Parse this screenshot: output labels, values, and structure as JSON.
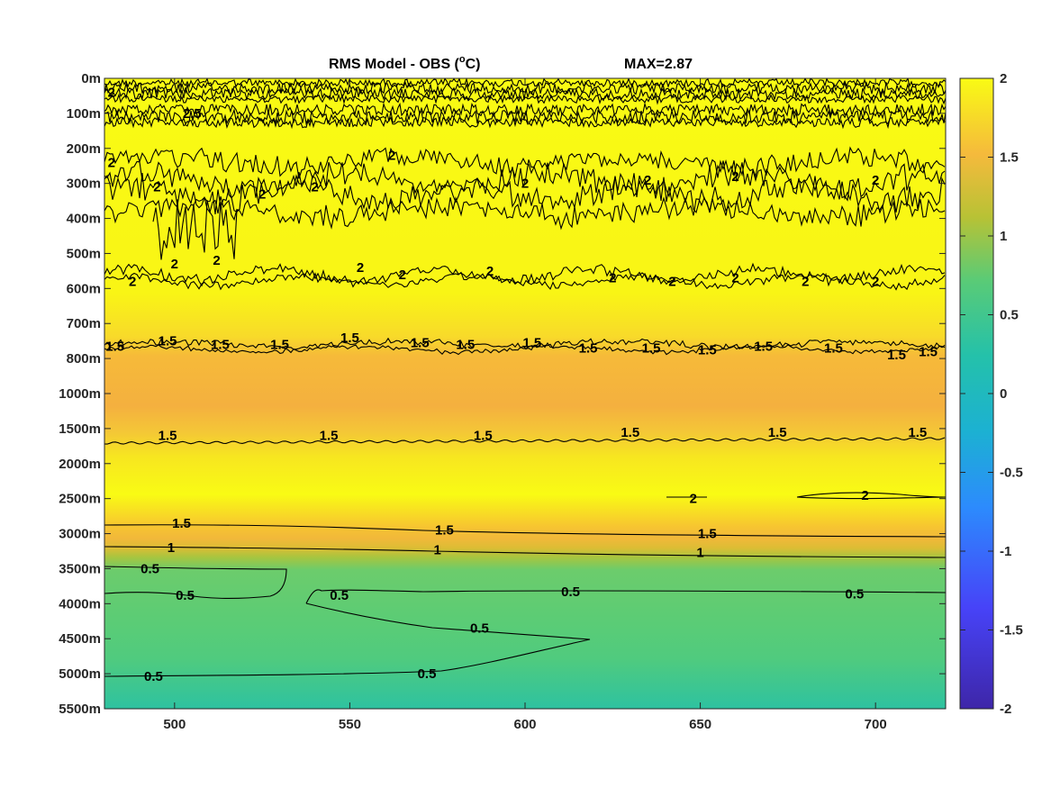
{
  "chart_data": {
    "type": "heatmap",
    "title": "RMS Model - OBS (",
    "title_unit": "o",
    "title_end": "C)",
    "max_label": "MAX=2.87",
    "x_ticks": [
      500,
      550,
      600,
      650,
      700
    ],
    "xlim": [
      480,
      720
    ],
    "y_tick_labels": [
      "0m",
      "100m",
      "200m",
      "300m",
      "400m",
      "500m",
      "600m",
      "700m",
      "800m",
      "1000m",
      "1500m",
      "2000m",
      "2500m",
      "3000m",
      "3500m",
      "4000m",
      "4500m",
      "5000m",
      "5500m"
    ],
    "colorbar": {
      "ticks": [
        "2",
        "1.5",
        "1",
        "0.5",
        "0",
        "-0.5",
        "-1",
        "-1.5",
        "-2"
      ],
      "range": [
        -2,
        2
      ],
      "colormap": [
        "#3e26a8",
        "#4743f8",
        "#2c8bfd",
        "#1cb1d2",
        "#24c1aa",
        "#5acb76",
        "#b8c235",
        "#f5ba3c",
        "#f9fb14"
      ]
    },
    "contour_labels": [
      {
        "text": "2.5",
        "x": 505,
        "y": "100m"
      },
      {
        "text": "2",
        "x": 482,
        "y": "40m"
      },
      {
        "text": "2",
        "x": 482,
        "y": "240m"
      },
      {
        "text": "2",
        "x": 495,
        "y": "310m"
      },
      {
        "text": "2",
        "x": 525,
        "y": "330m"
      },
      {
        "text": "2",
        "x": 540,
        "y": "310m"
      },
      {
        "text": "2",
        "x": 562,
        "y": "220m"
      },
      {
        "text": "2",
        "x": 600,
        "y": "300m"
      },
      {
        "text": "2",
        "x": 635,
        "y": "290m"
      },
      {
        "text": "2",
        "x": 660,
        "y": "280m"
      },
      {
        "text": "2",
        "x": 700,
        "y": "290m"
      },
      {
        "text": "2",
        "x": 488,
        "y": "580m"
      },
      {
        "text": "2",
        "x": 500,
        "y": "530m"
      },
      {
        "text": "2",
        "x": 512,
        "y": "520m"
      },
      {
        "text": "2",
        "x": 553,
        "y": "540m"
      },
      {
        "text": "2",
        "x": 565,
        "y": "560m"
      },
      {
        "text": "2",
        "x": 590,
        "y": "550m"
      },
      {
        "text": "2",
        "x": 625,
        "y": "570m"
      },
      {
        "text": "2",
        "x": 642,
        "y": "580m"
      },
      {
        "text": "2",
        "x": 660,
        "y": "570m"
      },
      {
        "text": "2",
        "x": 680,
        "y": "580m"
      },
      {
        "text": "2",
        "x": 700,
        "y": "580m"
      },
      {
        "text": "1.5",
        "x": 483,
        "y": "765m"
      },
      {
        "text": "1.5",
        "x": 498,
        "y": "750m"
      },
      {
        "text": "1.5",
        "x": 513,
        "y": "760m"
      },
      {
        "text": "1.5",
        "x": 530,
        "y": "760m"
      },
      {
        "text": "1.5",
        "x": 550,
        "y": "740m"
      },
      {
        "text": "1.5",
        "x": 570,
        "y": "755m"
      },
      {
        "text": "1.5",
        "x": 583,
        "y": "760m"
      },
      {
        "text": "1.5",
        "x": 602,
        "y": "755m"
      },
      {
        "text": "1.5",
        "x": 618,
        "y": "770m"
      },
      {
        "text": "1.5",
        "x": 636,
        "y": "770m"
      },
      {
        "text": "1.5",
        "x": 652,
        "y": "775m"
      },
      {
        "text": "1.5",
        "x": 668,
        "y": "765m"
      },
      {
        "text": "1.5",
        "x": 688,
        "y": "770m"
      },
      {
        "text": "1.5",
        "x": 706,
        "y": "790m"
      },
      {
        "text": "1.5",
        "x": 715,
        "y": "780m"
      },
      {
        "text": "1.5",
        "x": 498,
        "y": "1600m"
      },
      {
        "text": "1.5",
        "x": 544,
        "y": "1600m"
      },
      {
        "text": "1.5",
        "x": 588,
        "y": "1600m"
      },
      {
        "text": "1.5",
        "x": 630,
        "y": "1550m"
      },
      {
        "text": "1.5",
        "x": 672,
        "y": "1550m"
      },
      {
        "text": "1.5",
        "x": 712,
        "y": "1550m"
      },
      {
        "text": "2",
        "x": 648,
        "y": "2500m"
      },
      {
        "text": "2",
        "x": 697,
        "y": "2450m"
      },
      {
        "text": "1.5",
        "x": 502,
        "y": "2850m"
      },
      {
        "text": "1.5",
        "x": 577,
        "y": "2950m"
      },
      {
        "text": "1.5",
        "x": 652,
        "y": "3000m"
      },
      {
        "text": "1",
        "x": 499,
        "y": "3200m"
      },
      {
        "text": "1",
        "x": 575,
        "y": "3230m"
      },
      {
        "text": "1",
        "x": 650,
        "y": "3270m"
      },
      {
        "text": "0.5",
        "x": 493,
        "y": "3500m"
      },
      {
        "text": "0.5",
        "x": 503,
        "y": "3880m"
      },
      {
        "text": "0.5",
        "x": 547,
        "y": "3880m"
      },
      {
        "text": "0.5",
        "x": 613,
        "y": "3830m"
      },
      {
        "text": "0.5",
        "x": 587,
        "y": "4350m"
      },
      {
        "text": "0.5",
        "x": 694,
        "y": "3860m"
      },
      {
        "text": "0.5",
        "x": 494,
        "y": "5040m"
      },
      {
        "text": "0.5",
        "x": 572,
        "y": "5000m"
      }
    ]
  }
}
